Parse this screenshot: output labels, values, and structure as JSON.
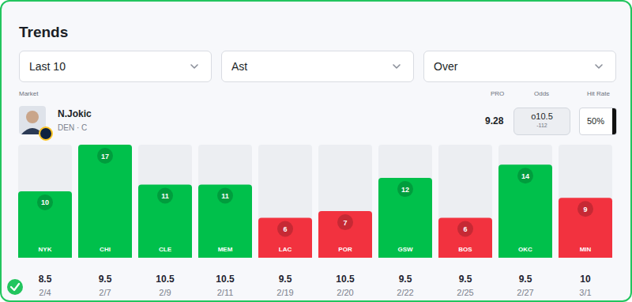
{
  "header": {
    "title": "Trends",
    "filters": [
      "Last 10",
      "Ast",
      "Over"
    ]
  },
  "market": {
    "label": "Market",
    "player": "N.Jokic",
    "team": "DEN · C",
    "pro_label": "PRO",
    "pro": 9.28,
    "odds_label": "Odds",
    "odds": "o10.5",
    "odds_price": "-112",
    "hit_rate_label": "Hit Rate",
    "hit_rate": "50%"
  },
  "chart_data": {
    "type": "bar",
    "categories": [
      "NYK",
      "CHI",
      "CLE",
      "MEM",
      "LAC",
      "POR",
      "GSW",
      "BOS",
      "OKC",
      "MIN"
    ],
    "values": [
      10,
      17,
      11,
      11,
      6,
      7,
      12,
      6,
      14,
      9
    ],
    "colors": [
      "#00c04b",
      "#00c04b",
      "#00c04b",
      "#00c04b",
      "#f2323f",
      "#f2323f",
      "#00c04b",
      "#f2323f",
      "#00c04b",
      "#f2323f"
    ],
    "lines": [
      8.5,
      9.5,
      10.5,
      10.5,
      9.5,
      10.5,
      9.5,
      9.5,
      9.5,
      10
    ],
    "dates": [
      "2/4",
      "2/7",
      "2/9",
      "2/11",
      "2/19",
      "2/20",
      "2/22",
      "2/25",
      "2/27",
      "3/1"
    ],
    "ylim": [
      0,
      17
    ],
    "data_labels": true,
    "tick_labels": false,
    "grid": false
  }
}
